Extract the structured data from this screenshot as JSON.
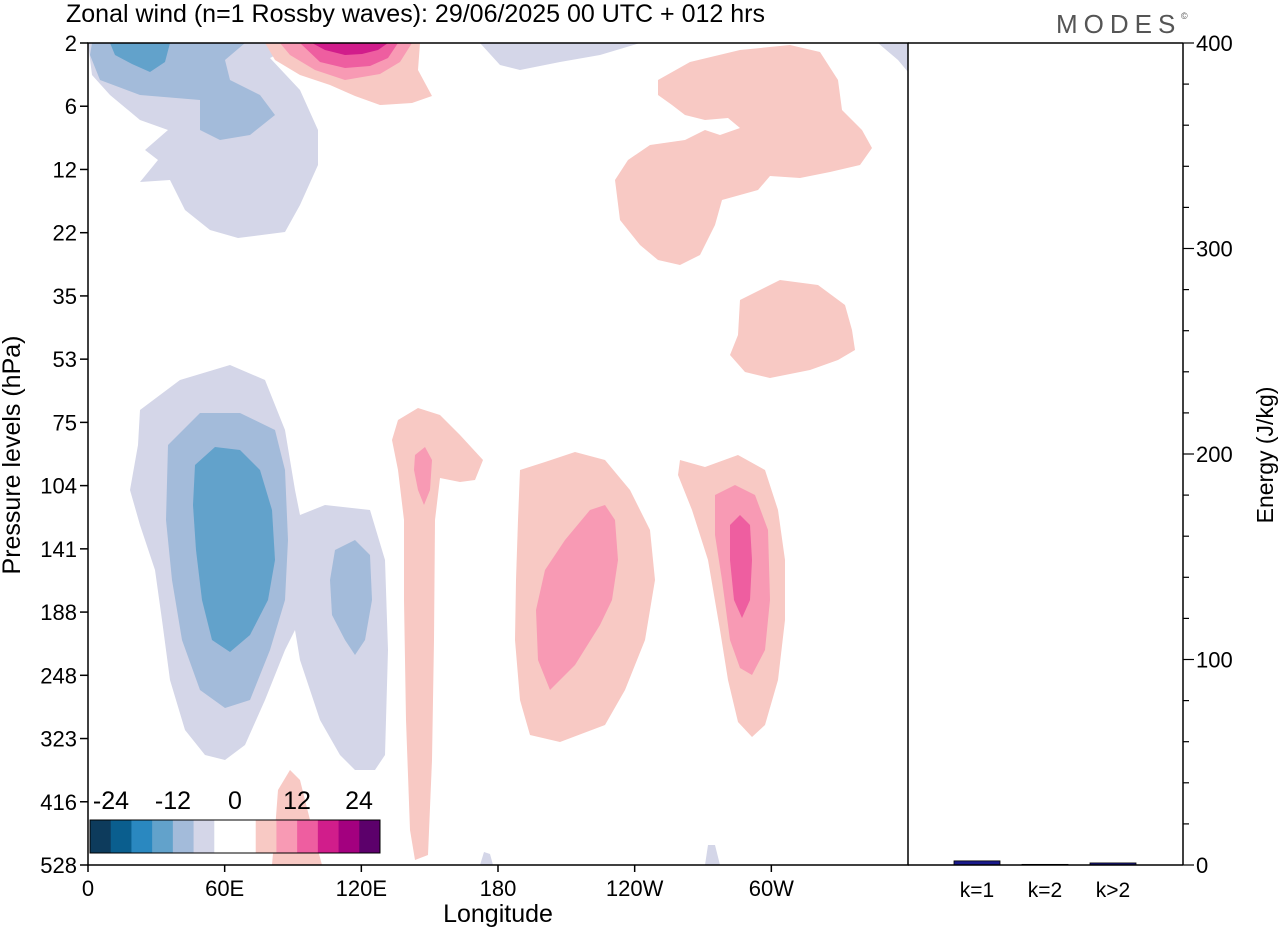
{
  "chart_data": {
    "type": "heatmap",
    "title": "Zonal wind (n=1 Rossby waves):  29/06/2025  00 UTC  + 012 hrs",
    "brand": "MODES",
    "brand_mark": "©",
    "xlabel": "Longitude",
    "ylabel": "Pressure levels (hPa)",
    "y2label": "Energy (J/kg)",
    "x_ticks": [
      "0",
      "60E",
      "120E",
      "180",
      "120W",
      "60W"
    ],
    "y_ticks": [
      "2",
      "6",
      "12",
      "22",
      "35",
      "53",
      "75",
      "104",
      "141",
      "188",
      "248",
      "323",
      "416",
      "528"
    ],
    "colorbar": {
      "labels": [
        "-24",
        "-12",
        "0",
        "12",
        "24"
      ],
      "colors": [
        "#0d3b5c",
        "#0a5e8e",
        "#2a88c0",
        "#62a2cb",
        "#a3bbda",
        "#d4d6e8",
        "#ffffff",
        "#ffffff",
        "#f8c9c4",
        "#f89ab4",
        "#ee5ea0",
        "#d11d8b",
        "#a3007f",
        "#5c006b"
      ]
    },
    "contours": {
      "blue1": "#d4d6e8",
      "blue2": "#a3bbda",
      "blue3": "#62a2cb",
      "blue4": "#2a88c0",
      "pink1": "#f8c9c4",
      "pink2": "#f89ab4",
      "pink3": "#ee5ea0",
      "pink4": "#d11d8b"
    },
    "energy": {
      "categories": [
        "k=1",
        "k=2",
        "k>2"
      ],
      "values": [
        2,
        0.3,
        1
      ],
      "ylim": [
        0,
        400
      ],
      "ticks": [
        "0",
        "100",
        "200",
        "300",
        "400"
      ],
      "bar_color": "#1a1a8c"
    }
  }
}
